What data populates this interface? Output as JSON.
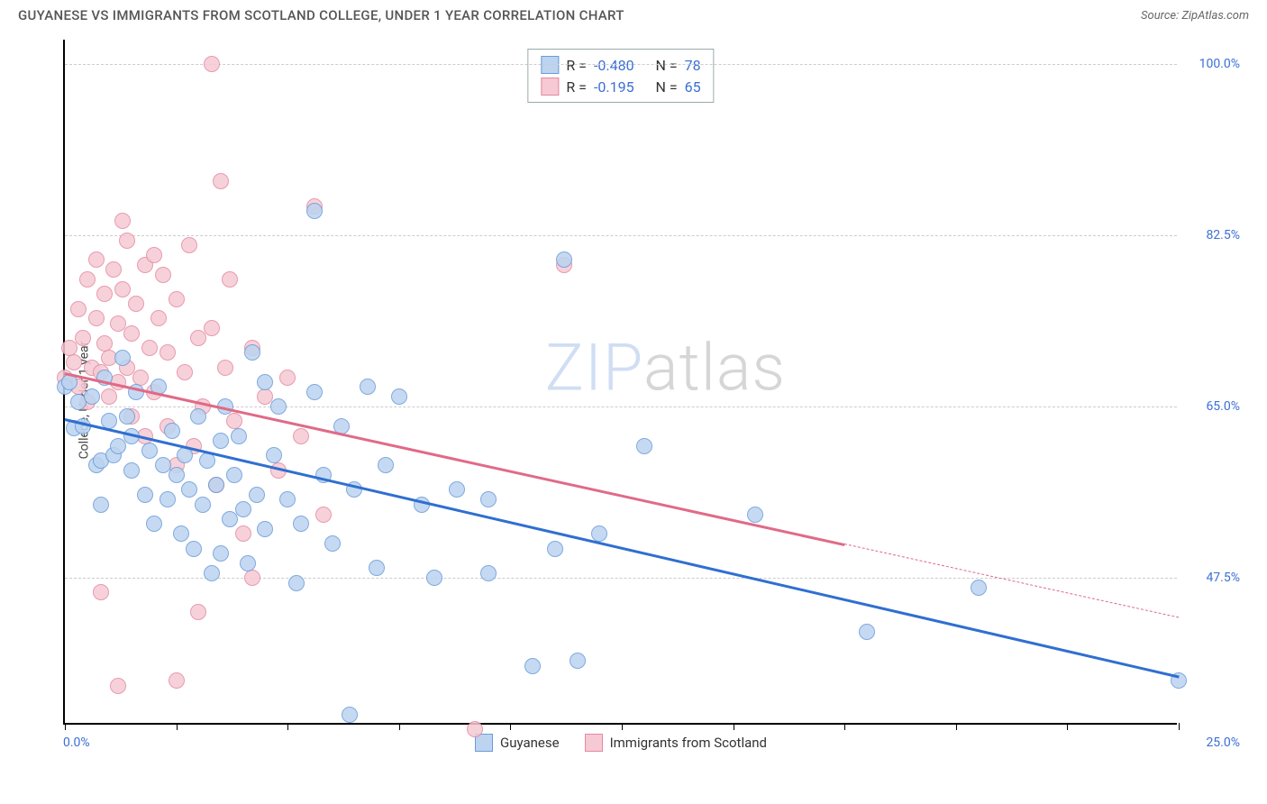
{
  "header": {
    "title": "GUYANESE VS IMMIGRANTS FROM SCOTLAND COLLEGE, UNDER 1 YEAR CORRELATION CHART",
    "source_label": "Source: ",
    "source_name": "ZipAtlas.com"
  },
  "chart": {
    "type": "scatter",
    "y_axis_label": "College, Under 1 year",
    "background_color": "#ffffff",
    "grid_color": "#cccccc",
    "axis_color": "#000000",
    "tick_label_color": "#3b6fd6",
    "tick_fontsize": 14,
    "axis_label_fontsize": 14,
    "xlim": [
      0,
      25
    ],
    "ylim": [
      32.5,
      102.5
    ],
    "x_ticks": [
      0,
      2.5,
      5,
      7.5,
      10,
      12.5,
      15,
      17.5,
      20,
      22.5,
      25
    ],
    "x_tick_labels_shown": {
      "0": "0.0%",
      "25": "25.0%"
    },
    "y_gridlines": [
      47.5,
      65.0,
      82.5,
      100.0
    ],
    "y_tick_labels": [
      "47.5%",
      "65.0%",
      "82.5%",
      "100.0%"
    ],
    "point_radius": 9,
    "point_stroke_width": 1,
    "series": [
      {
        "name": "Guyanese",
        "fill_color": "#bcd4f0",
        "stroke_color": "#6a9bd8",
        "trend_color": "#2f6fd0",
        "trend_width": 2.5,
        "trend": {
          "x1": 0,
          "y1": 63.8,
          "x2": 25,
          "y2": 37.5
        },
        "R": "-0.480",
        "N": "78",
        "points": [
          [
            0.0,
            67.0
          ],
          [
            0.1,
            67.5
          ],
          [
            0.2,
            62.8
          ],
          [
            0.3,
            65.5
          ],
          [
            0.4,
            63.0
          ],
          [
            0.6,
            66.0
          ],
          [
            0.7,
            59.0
          ],
          [
            0.8,
            59.5
          ],
          [
            0.8,
            55.0
          ],
          [
            0.9,
            68.0
          ],
          [
            1.0,
            63.5
          ],
          [
            1.1,
            60.0
          ],
          [
            1.2,
            61.0
          ],
          [
            1.3,
            70.0
          ],
          [
            1.4,
            64.0
          ],
          [
            1.5,
            58.5
          ],
          [
            1.5,
            62.0
          ],
          [
            1.6,
            66.5
          ],
          [
            1.8,
            56.0
          ],
          [
            1.9,
            60.5
          ],
          [
            2.0,
            53.0
          ],
          [
            2.1,
            67.0
          ],
          [
            2.2,
            59.0
          ],
          [
            2.3,
            55.5
          ],
          [
            2.4,
            62.5
          ],
          [
            2.5,
            58.0
          ],
          [
            2.6,
            52.0
          ],
          [
            2.7,
            60.0
          ],
          [
            2.8,
            56.5
          ],
          [
            2.9,
            50.5
          ],
          [
            3.0,
            64.0
          ],
          [
            3.1,
            55.0
          ],
          [
            3.2,
            59.5
          ],
          [
            3.3,
            48.0
          ],
          [
            3.4,
            57.0
          ],
          [
            3.5,
            61.5
          ],
          [
            3.5,
            50.0
          ],
          [
            3.6,
            65.0
          ],
          [
            3.7,
            53.5
          ],
          [
            3.8,
            58.0
          ],
          [
            3.9,
            62.0
          ],
          [
            4.0,
            54.5
          ],
          [
            4.1,
            49.0
          ],
          [
            4.2,
            70.5
          ],
          [
            4.3,
            56.0
          ],
          [
            4.5,
            67.5
          ],
          [
            4.5,
            52.5
          ],
          [
            4.7,
            60.0
          ],
          [
            4.8,
            65.0
          ],
          [
            5.0,
            55.5
          ],
          [
            5.2,
            47.0
          ],
          [
            5.3,
            53.0
          ],
          [
            5.6,
            85.0
          ],
          [
            5.6,
            66.5
          ],
          [
            5.8,
            58.0
          ],
          [
            6.0,
            51.0
          ],
          [
            6.2,
            63.0
          ],
          [
            6.4,
            33.5
          ],
          [
            6.5,
            56.5
          ],
          [
            6.8,
            67.0
          ],
          [
            7.0,
            48.5
          ],
          [
            7.2,
            59.0
          ],
          [
            7.5,
            66.0
          ],
          [
            8.0,
            55.0
          ],
          [
            8.3,
            47.5
          ],
          [
            8.8,
            56.5
          ],
          [
            9.5,
            48.0
          ],
          [
            9.5,
            55.5
          ],
          [
            10.5,
            38.5
          ],
          [
            11.0,
            50.5
          ],
          [
            11.5,
            39.0
          ],
          [
            12.0,
            52.0
          ],
          [
            13.0,
            61.0
          ],
          [
            15.5,
            54.0
          ],
          [
            18.0,
            42.0
          ],
          [
            20.5,
            46.5
          ],
          [
            25.0,
            37.0
          ],
          [
            11.2,
            80.0
          ]
        ]
      },
      {
        "name": "Immigrants from Scotland",
        "fill_color": "#f6c9d4",
        "stroke_color": "#e38aa0",
        "trend_color": "#e06a87",
        "trend_width": 2.5,
        "trend_solid": {
          "x1": 0,
          "y1": 68.5,
          "x2": 17.5,
          "y2": 51.0
        },
        "trend_dash": {
          "x1": 17.5,
          "y1": 51.0,
          "x2": 25,
          "y2": 43.5
        },
        "R": "-0.195",
        "N": "65",
        "points": [
          [
            0.0,
            68.0
          ],
          [
            0.1,
            71.0
          ],
          [
            0.2,
            69.5
          ],
          [
            0.3,
            75.0
          ],
          [
            0.3,
            67.0
          ],
          [
            0.4,
            72.0
          ],
          [
            0.5,
            78.0
          ],
          [
            0.5,
            65.5
          ],
          [
            0.6,
            69.0
          ],
          [
            0.7,
            74.0
          ],
          [
            0.7,
            80.0
          ],
          [
            0.8,
            68.5
          ],
          [
            0.9,
            71.5
          ],
          [
            0.9,
            76.5
          ],
          [
            1.0,
            66.0
          ],
          [
            1.0,
            70.0
          ],
          [
            1.1,
            79.0
          ],
          [
            1.2,
            73.5
          ],
          [
            1.2,
            67.5
          ],
          [
            1.3,
            77.0
          ],
          [
            1.4,
            69.0
          ],
          [
            1.4,
            82.0
          ],
          [
            1.5,
            64.0
          ],
          [
            1.5,
            72.5
          ],
          [
            1.6,
            75.5
          ],
          [
            1.7,
            68.0
          ],
          [
            1.8,
            79.5
          ],
          [
            1.8,
            62.0
          ],
          [
            1.9,
            71.0
          ],
          [
            2.0,
            80.5
          ],
          [
            2.0,
            66.5
          ],
          [
            2.1,
            74.0
          ],
          [
            2.2,
            78.5
          ],
          [
            2.3,
            63.0
          ],
          [
            2.3,
            70.5
          ],
          [
            2.5,
            59.0
          ],
          [
            2.5,
            76.0
          ],
          [
            2.7,
            68.5
          ],
          [
            2.8,
            81.5
          ],
          [
            2.9,
            61.0
          ],
          [
            3.0,
            72.0
          ],
          [
            3.1,
            65.0
          ],
          [
            3.3,
            73.0
          ],
          [
            3.4,
            57.0
          ],
          [
            3.5,
            88.0
          ],
          [
            3.6,
            69.0
          ],
          [
            3.7,
            78.0
          ],
          [
            3.8,
            63.5
          ],
          [
            4.0,
            52.0
          ],
          [
            4.2,
            71.0
          ],
          [
            4.5,
            66.0
          ],
          [
            4.8,
            58.5
          ],
          [
            5.0,
            68.0
          ],
          [
            5.3,
            62.0
          ],
          [
            5.6,
            85.5
          ],
          [
            5.8,
            54.0
          ],
          [
            2.5,
            37.0
          ],
          [
            3.3,
            100.0
          ],
          [
            1.3,
            84.0
          ],
          [
            1.2,
            36.5
          ],
          [
            9.2,
            32.0
          ],
          [
            4.2,
            47.5
          ],
          [
            0.8,
            46.0
          ],
          [
            3.0,
            44.0
          ],
          [
            11.2,
            79.5
          ]
        ]
      }
    ],
    "corr_legend_labels": {
      "R": "R =",
      "N": "N ="
    }
  },
  "bottom_legend": {
    "items": [
      {
        "label": "Guyanese",
        "fill": "#bcd4f0",
        "stroke": "#6a9bd8"
      },
      {
        "label": "Immigrants from Scotland",
        "fill": "#f6c9d4",
        "stroke": "#e38aa0"
      }
    ]
  },
  "watermark": {
    "zip": "ZIP",
    "atlas": "atlas"
  }
}
